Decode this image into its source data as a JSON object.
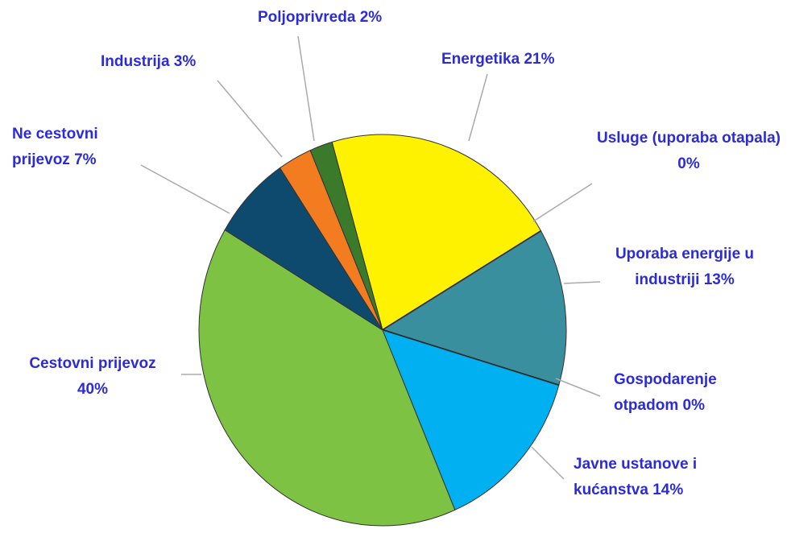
{
  "chart_data": {
    "type": "pie",
    "categories": [
      "Energetika",
      "Usluge (uporaba otapala)",
      "Uporaba energije u industriji",
      "Gospodarenje otpadom",
      "Javne ustanove i kućanstva",
      "Cestovni prijevoz",
      "Ne cestovni prijevoz",
      "Industrija",
      "Poljoprivreda"
    ],
    "values": [
      21,
      0,
      13,
      0,
      14,
      40,
      7,
      3,
      2
    ],
    "value_labels": [
      "21%",
      "0%",
      "13%",
      "0%",
      "14%",
      "40%",
      "7%",
      "3%",
      "2%"
    ],
    "colors": [
      "#fff200",
      "#3a8f9e",
      "#3a8f9e",
      "#00b0f0",
      "#00b0f0",
      "#7dc242",
      "#0d4a6e",
      "#f47c20",
      "#3a7a2a"
    ]
  }
}
